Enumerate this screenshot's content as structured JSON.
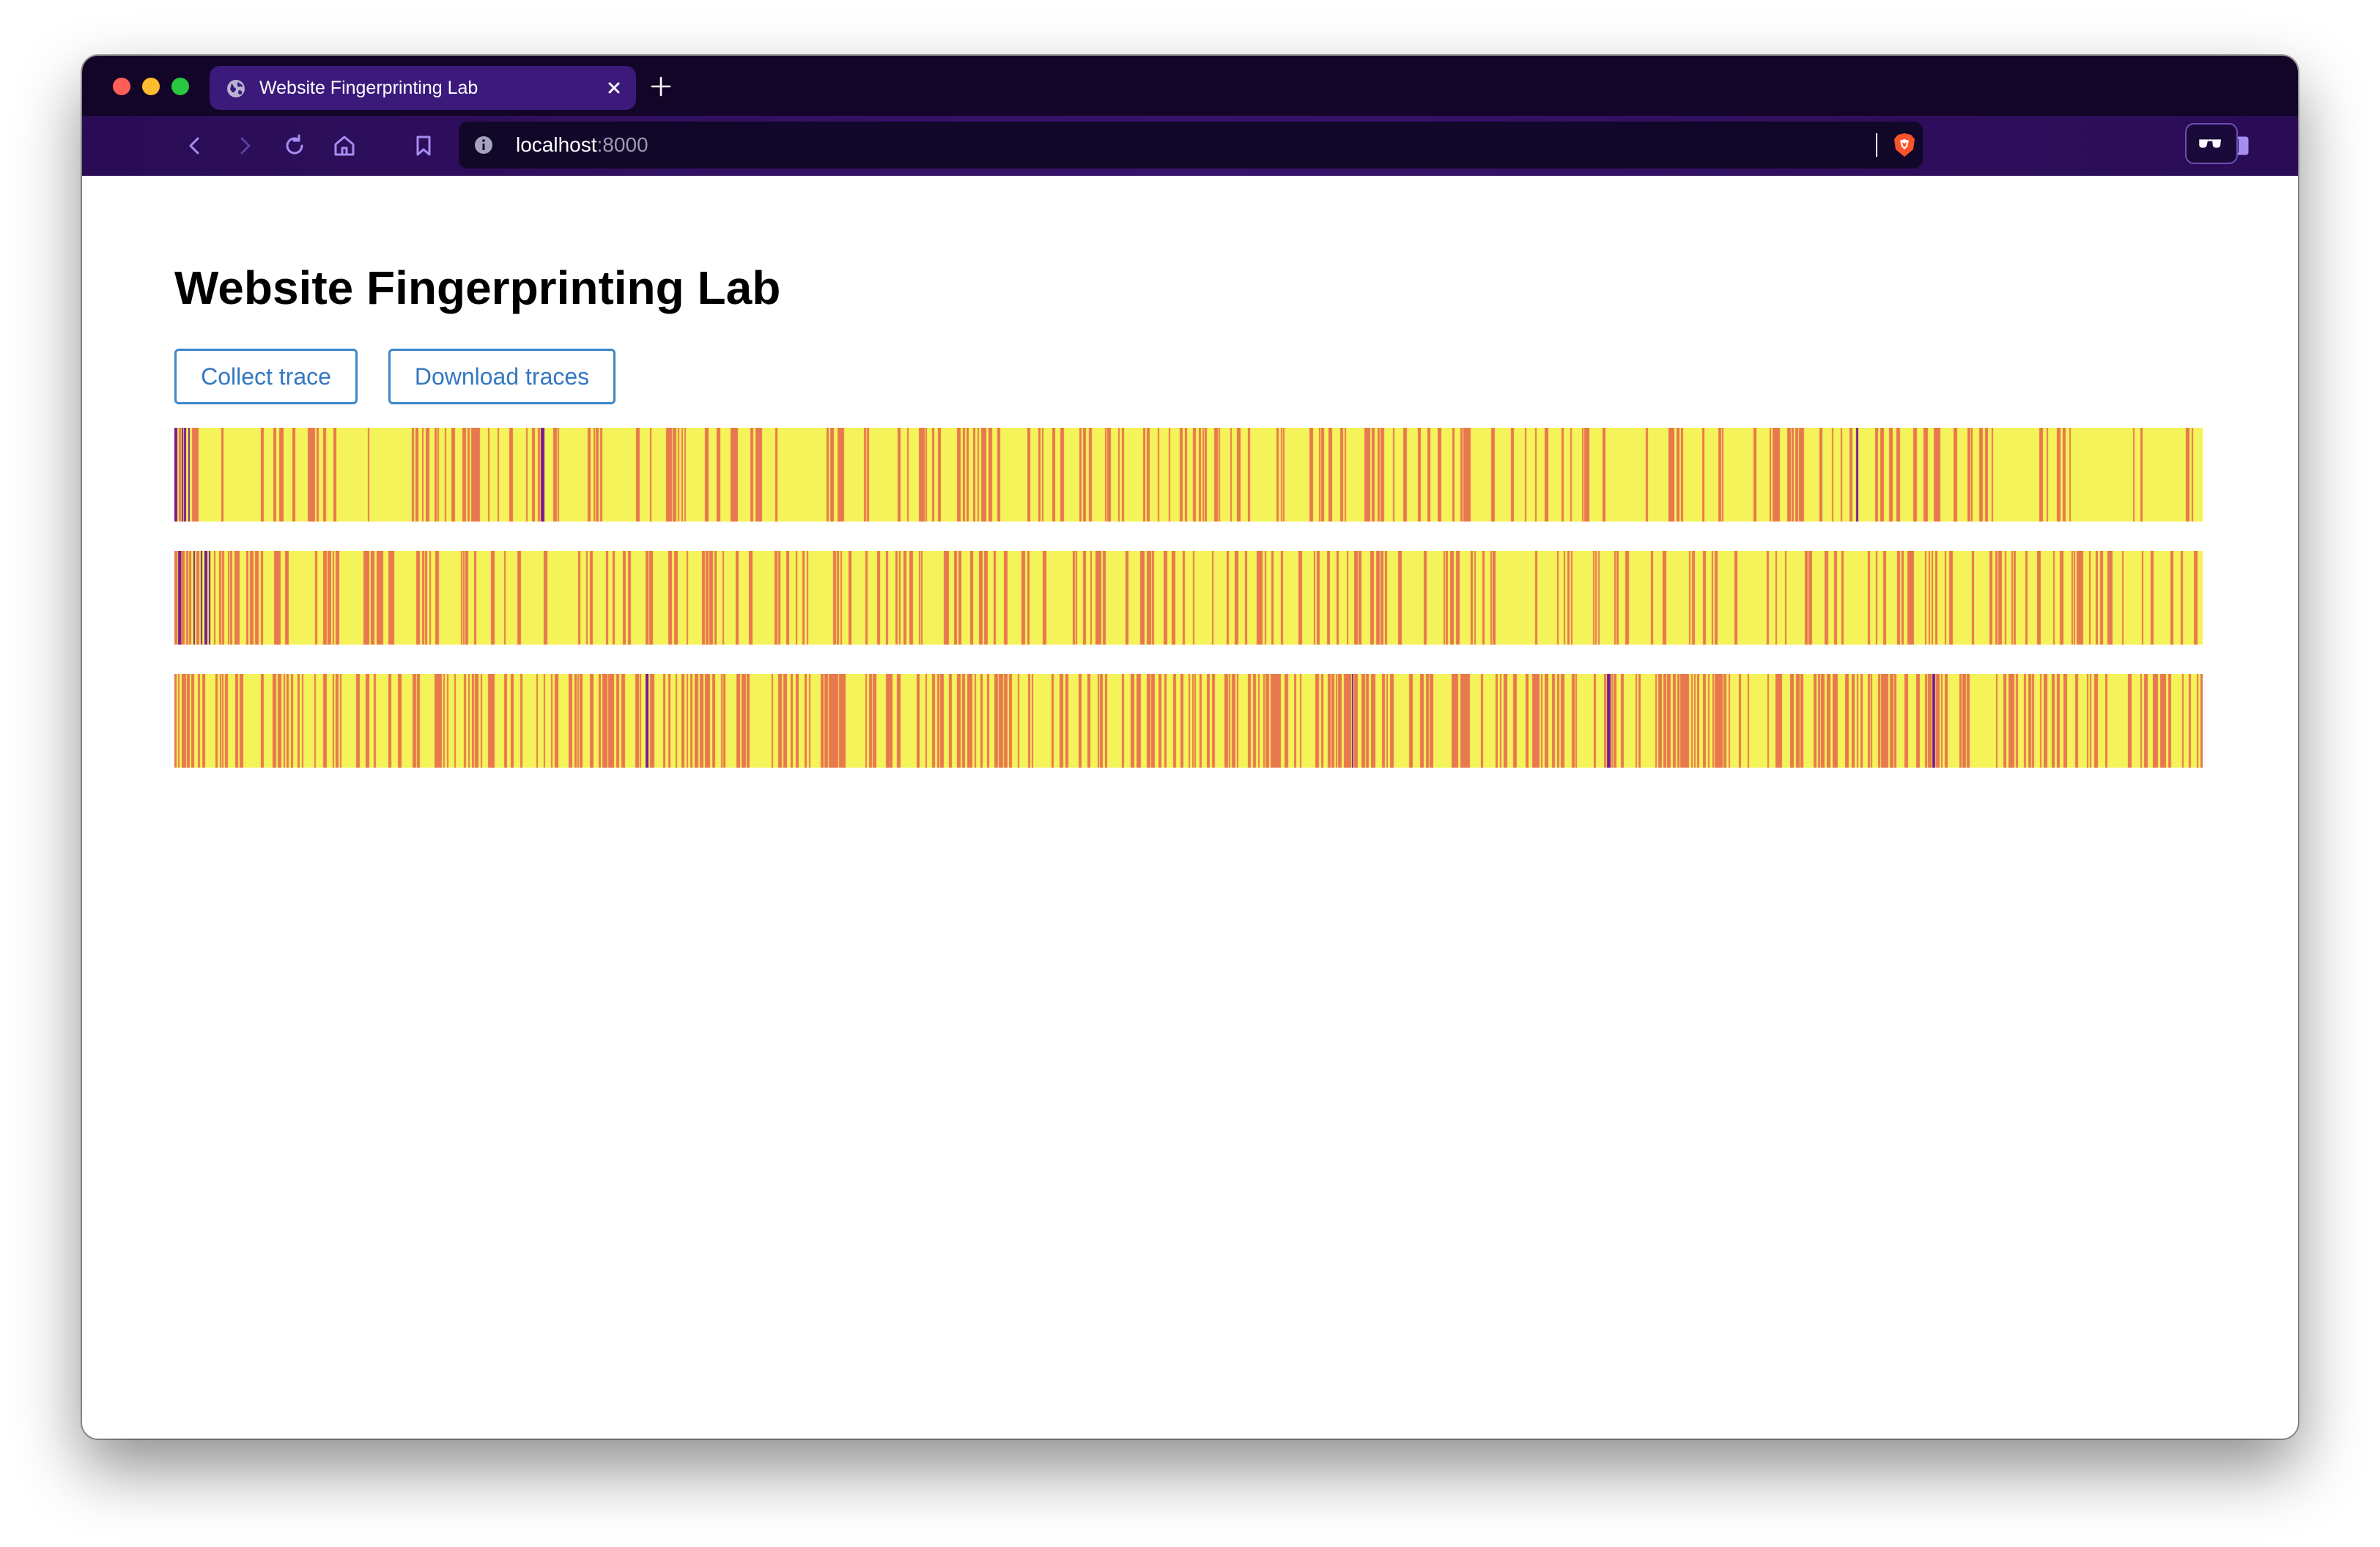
{
  "browser": {
    "tab": {
      "title": "Website Fingerprinting Lab",
      "icon": "globe-icon"
    },
    "toolbar": {
      "icons": [
        "back-icon",
        "forward-icon",
        "reload-icon",
        "home-icon",
        "bookmark-icon",
        "sidebar-icon",
        "wallet-icon",
        "menu-icon"
      ]
    },
    "url": {
      "host": "localhost",
      "port": ":8000"
    },
    "colors": {
      "tabstrip": "#130527",
      "toolbar": "#361369",
      "active_tab": "#3b1a7c",
      "urlbar": "#110728"
    }
  },
  "page": {
    "title": "Website Fingerprinting Lab",
    "buttons": {
      "collect": "Collect trace",
      "download": "Download traces"
    },
    "heatmap_palette": {
      "dark": "#7a1a8e",
      "mid": "#e8784f",
      "light": "#f5f35a"
    },
    "traces": [
      {
        "density": 0.32,
        "dark_lead": 0.012
      },
      {
        "density": 0.42,
        "dark_lead": 0.018
      },
      {
        "density": 0.55,
        "dark_lead": 0.0
      }
    ]
  }
}
